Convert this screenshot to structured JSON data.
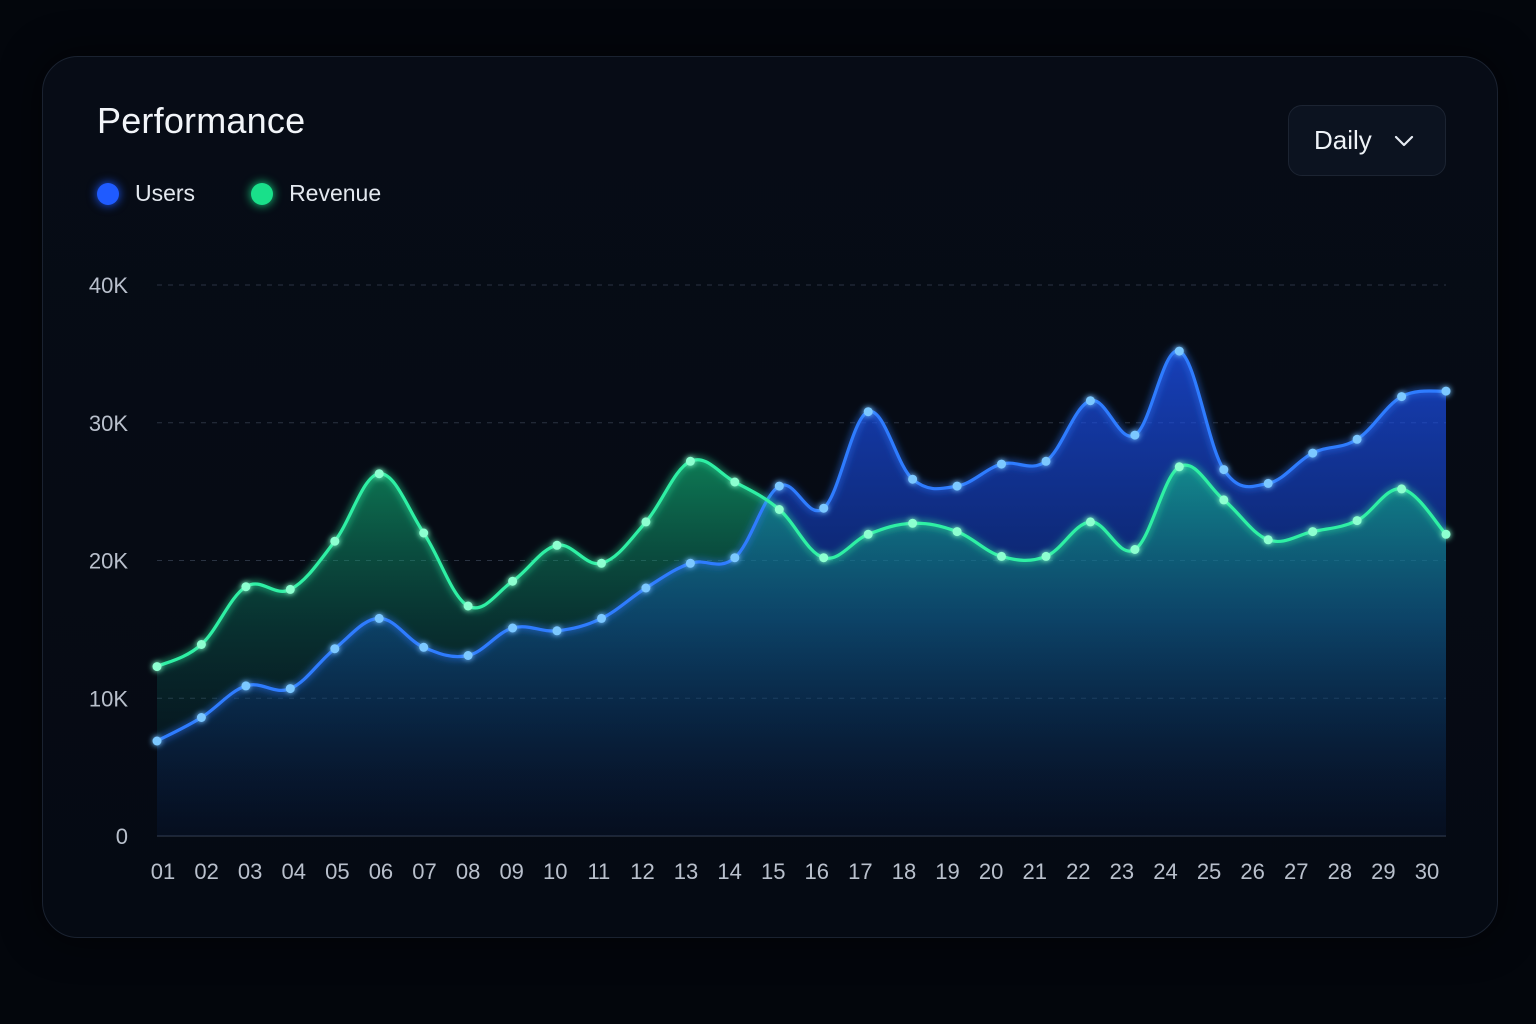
{
  "card": {
    "title": "Performance",
    "dropdown": {
      "selected": "Daily",
      "icon": "chevron-down-icon"
    }
  },
  "legend": [
    {
      "label": "Users",
      "color": "#1f5bff"
    },
    {
      "label": "Revenue",
      "color": "#19e08a"
    }
  ],
  "chart_data": {
    "type": "area",
    "title": "Performance",
    "categories": [
      "01",
      "02",
      "03",
      "04",
      "05",
      "06",
      "07",
      "08",
      "09",
      "10",
      "11",
      "12",
      "13",
      "14",
      "15",
      "16",
      "17",
      "18",
      "19",
      "20",
      "21",
      "22",
      "23",
      "24",
      "25",
      "26",
      "27",
      "28",
      "29",
      "30"
    ],
    "y_ticks": [
      "0",
      "10K",
      "20K",
      "30K",
      "40K"
    ],
    "ylim": [
      0,
      40000
    ],
    "grid": true,
    "legend_position": "top-left",
    "series": [
      {
        "name": "Users",
        "color": "#1f5bff",
        "values": [
          6900,
          8600,
          10900,
          10700,
          13600,
          15800,
          13700,
          13100,
          15100,
          14900,
          15800,
          18000,
          19800,
          20200,
          25400,
          23800,
          30800,
          25900,
          25400,
          27000,
          27200,
          31600,
          29100,
          35200,
          26600,
          25600,
          27800,
          28800,
          31900,
          32300
        ]
      },
      {
        "name": "Revenue",
        "color": "#19e08a",
        "values": [
          12300,
          13900,
          18100,
          17900,
          21400,
          26300,
          22000,
          16700,
          18500,
          21100,
          19800,
          22800,
          27200,
          25700,
          23700,
          20200,
          21900,
          22700,
          22100,
          20300,
          20300,
          22800,
          20800,
          26800,
          24400,
          21500,
          22100,
          22900,
          25200,
          21900
        ]
      }
    ]
  }
}
